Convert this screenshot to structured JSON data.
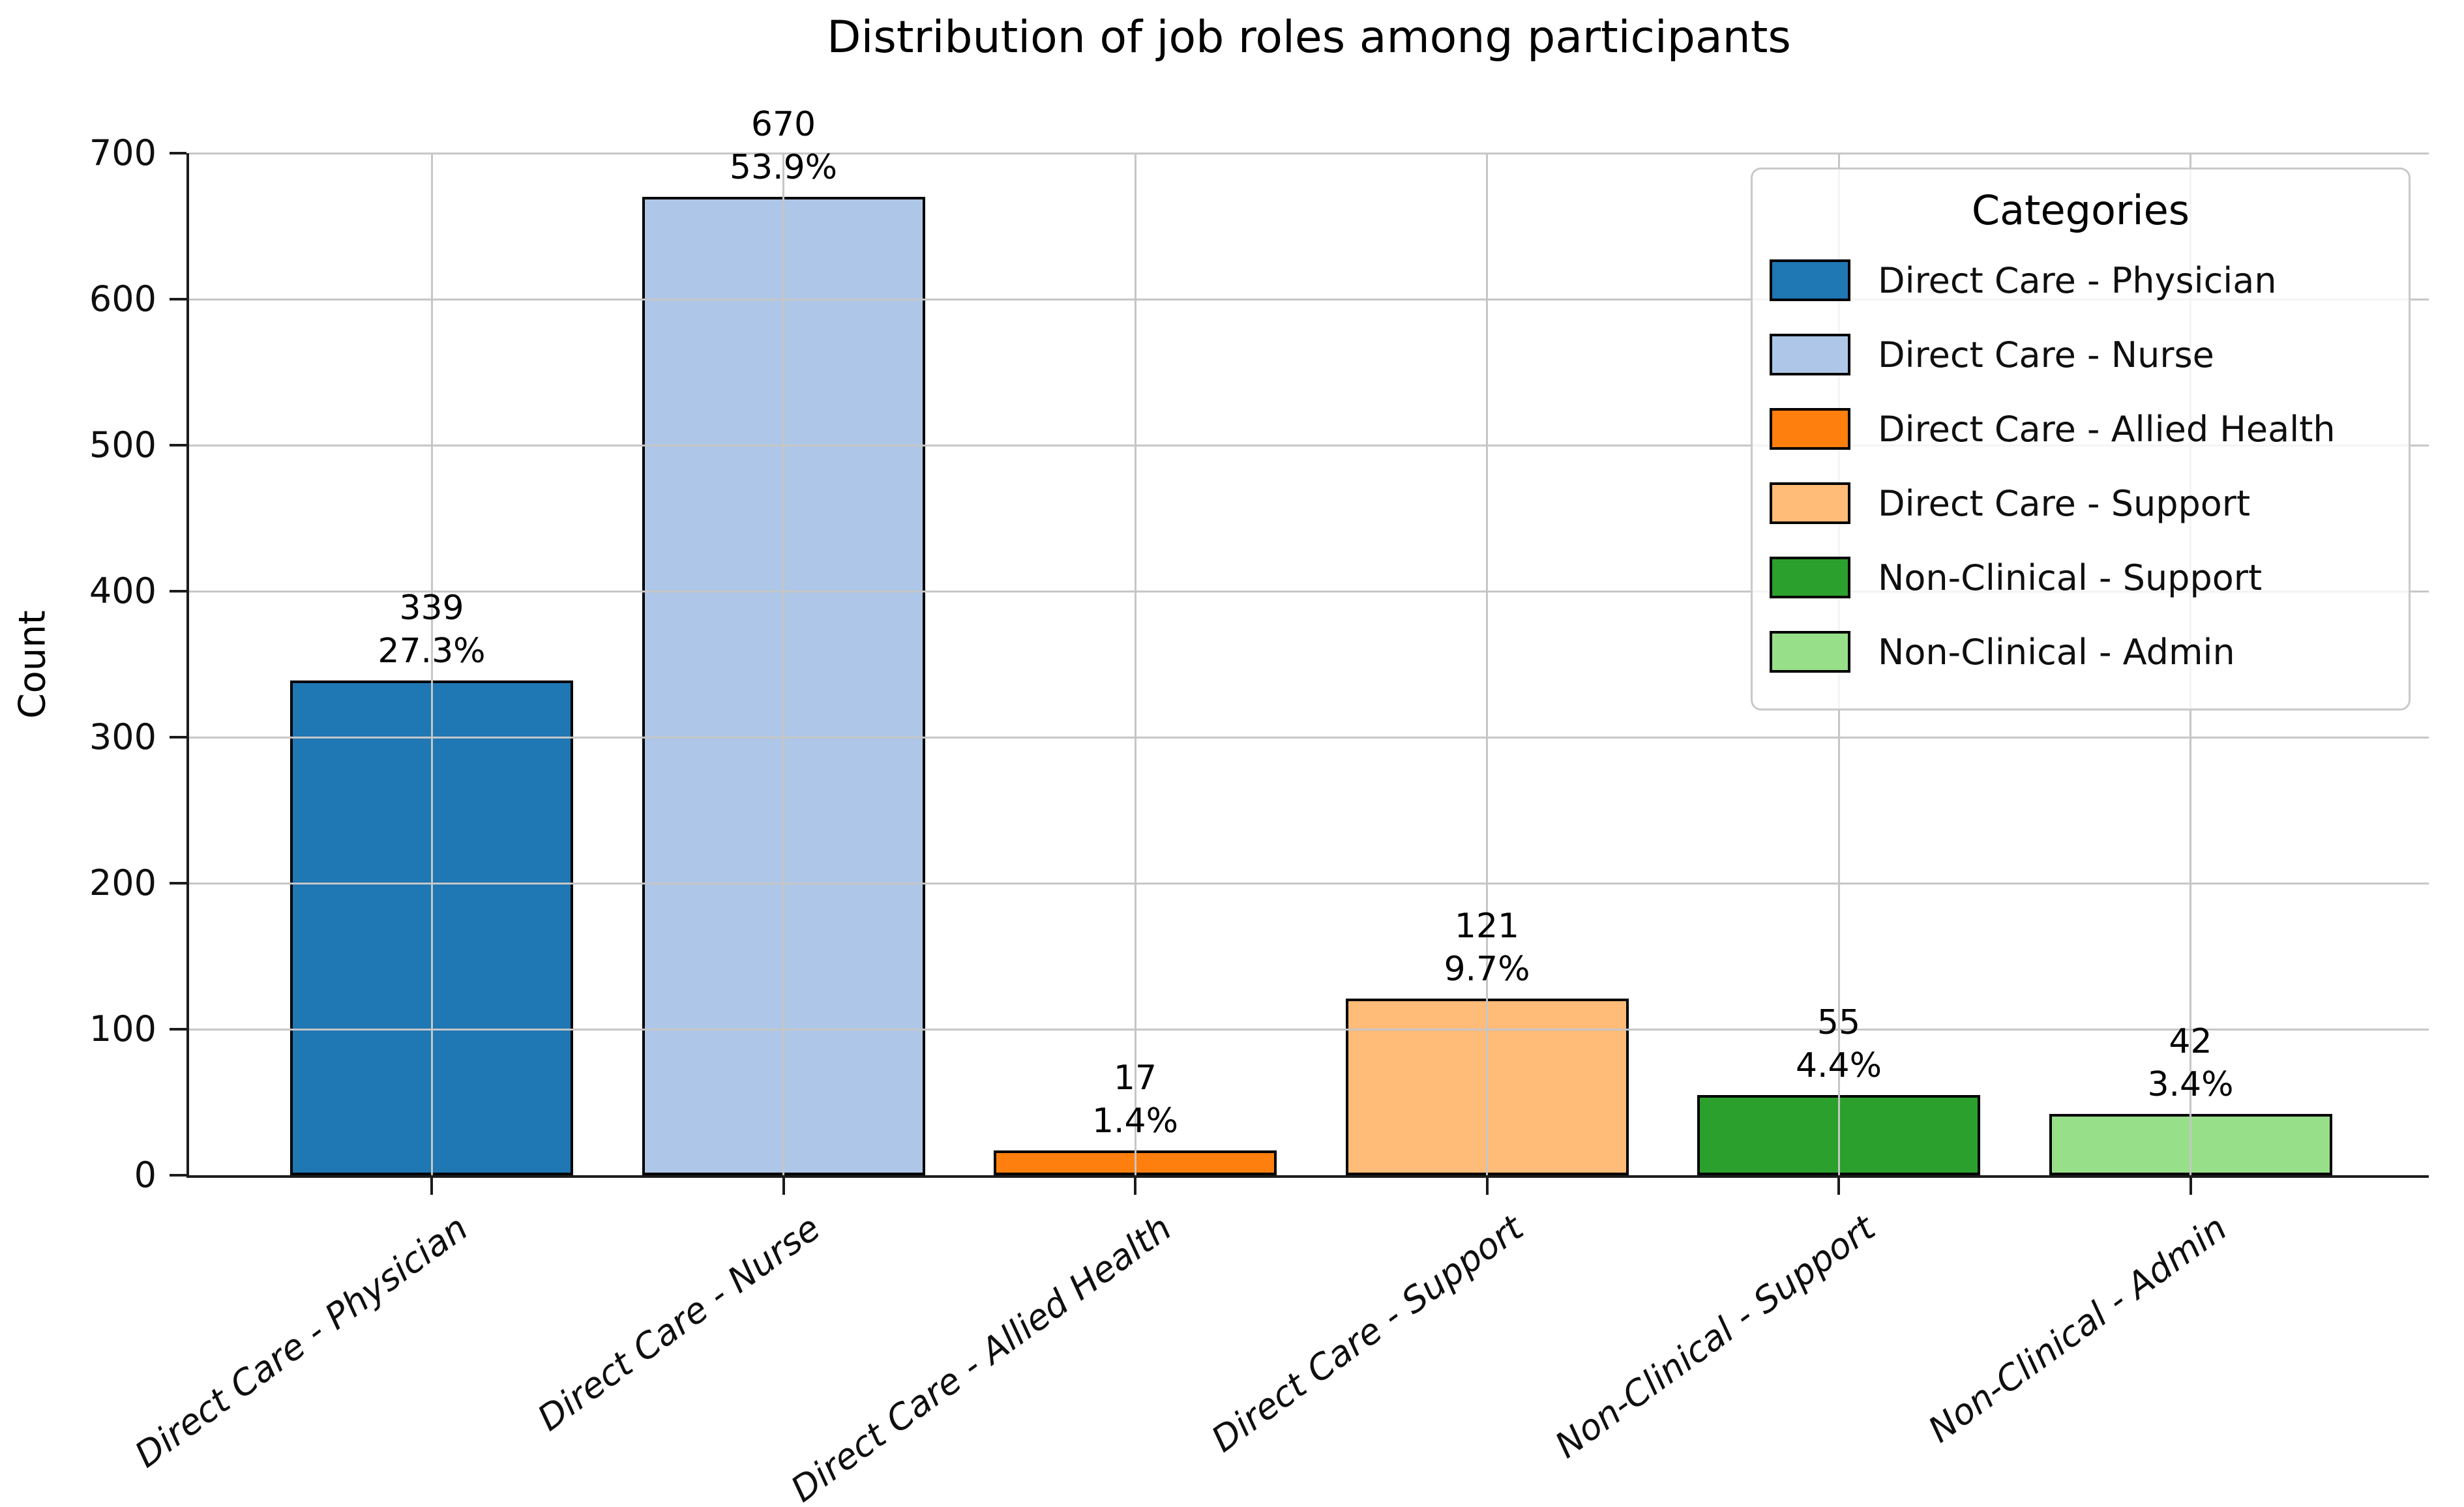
{
  "chart_data": {
    "type": "bar",
    "title": "Distribution of job roles among participants",
    "xlabel": "",
    "ylabel": "Count",
    "ylim": [
      0,
      700
    ],
    "yticks": [
      0,
      100,
      200,
      300,
      400,
      500,
      600,
      700
    ],
    "grid": true,
    "grid_color": "#c6c6c6",
    "bar_edge_color": "#000000",
    "categories": [
      "Direct Care - Physician",
      "Direct Care - Nurse",
      "Direct Care - Allied Health",
      "Direct Care - Support",
      "Non-Clinical - Support",
      "Non-Clinical - Admin"
    ],
    "values": [
      339,
      670,
      17,
      121,
      55,
      42
    ],
    "percent_labels": [
      "27.3%",
      "53.9%",
      "1.4%",
      "9.7%",
      "4.4%",
      "3.4%"
    ],
    "colors": [
      "#1f77b4",
      "#aec7e8",
      "#ff7f0e",
      "#ffbb78",
      "#2ca02c",
      "#98df8a"
    ],
    "legend": {
      "title": "Categories",
      "position": "upper right",
      "entries": [
        {
          "label": "Direct Care - Physician",
          "color": "#1f77b4"
        },
        {
          "label": "Direct Care - Nurse",
          "color": "#aec7e8"
        },
        {
          "label": "Direct Care - Allied Health",
          "color": "#ff7f0e"
        },
        {
          "label": "Direct Care - Support",
          "color": "#ffbb78"
        },
        {
          "label": "Non-Clinical - Support",
          "color": "#2ca02c"
        },
        {
          "label": "Non-Clinical - Admin",
          "color": "#98df8a"
        }
      ]
    }
  }
}
